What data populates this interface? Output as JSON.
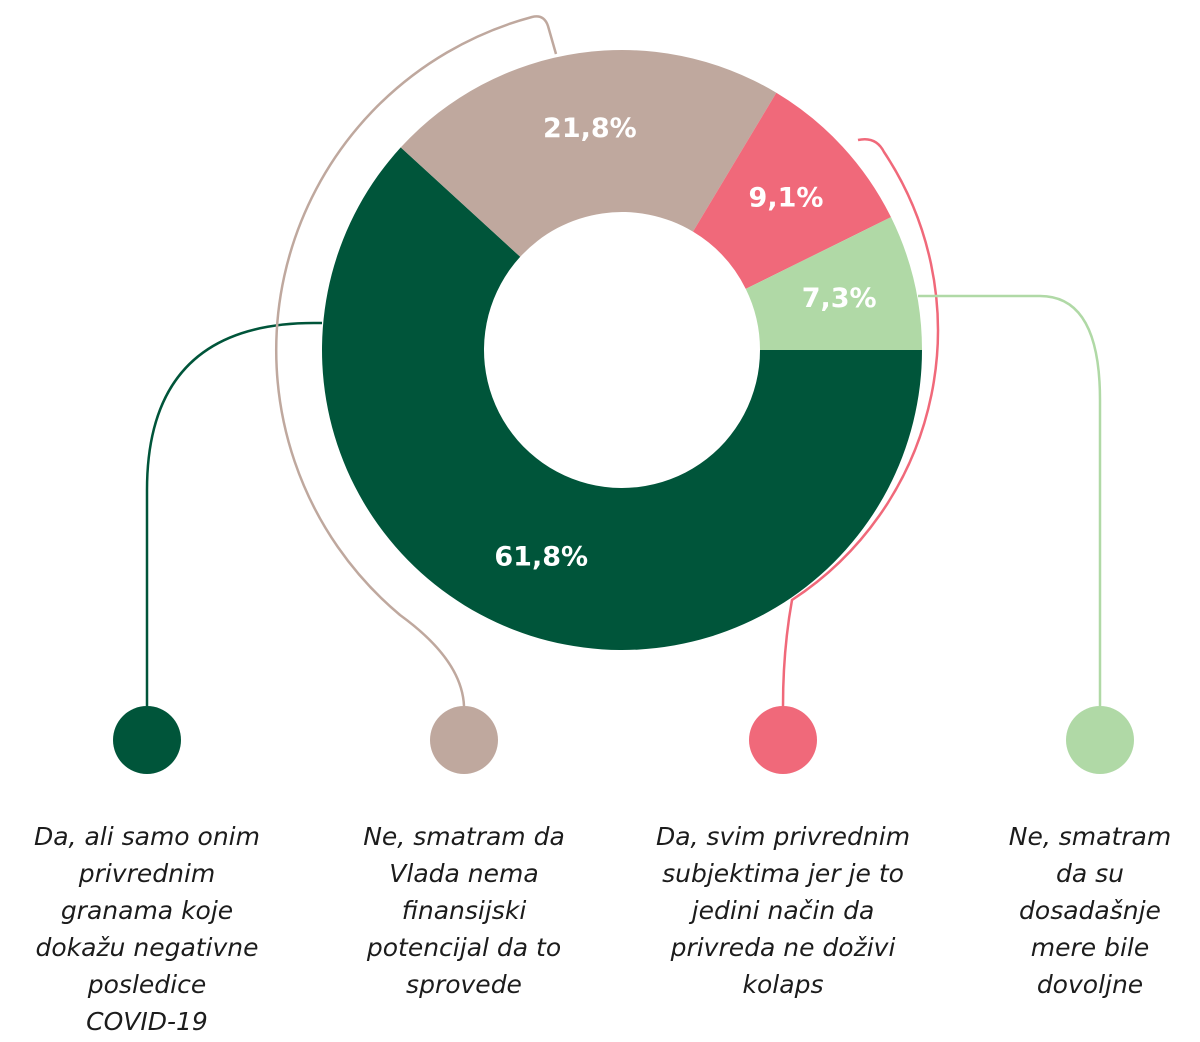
{
  "chart_data": {
    "type": "donut",
    "categories": [
      "Da, ali samo onim\nprivrednim\ngranama koje\ndokažu negativne\nposledice\nCOVID-19",
      "Ne, smatram da\nVlada nema\nfinansijski\npotencijal da to\nsprovede",
      "Da, svim privrednim\nsubjektima jer je to\njedini način da\nprivreda ne doživi\nkolaps",
      "Ne, smatram\nda su\ndosadašnje\nmere bile\ndovoljne"
    ],
    "values": [
      61.8,
      21.8,
      9.1,
      7.3
    ],
    "value_labels": [
      "61,8%",
      "21,8%",
      "9,1%",
      "7,3%"
    ],
    "colors": [
      "#00553a",
      "#bfa89e",
      "#f0697a",
      "#b0d9a6"
    ]
  }
}
